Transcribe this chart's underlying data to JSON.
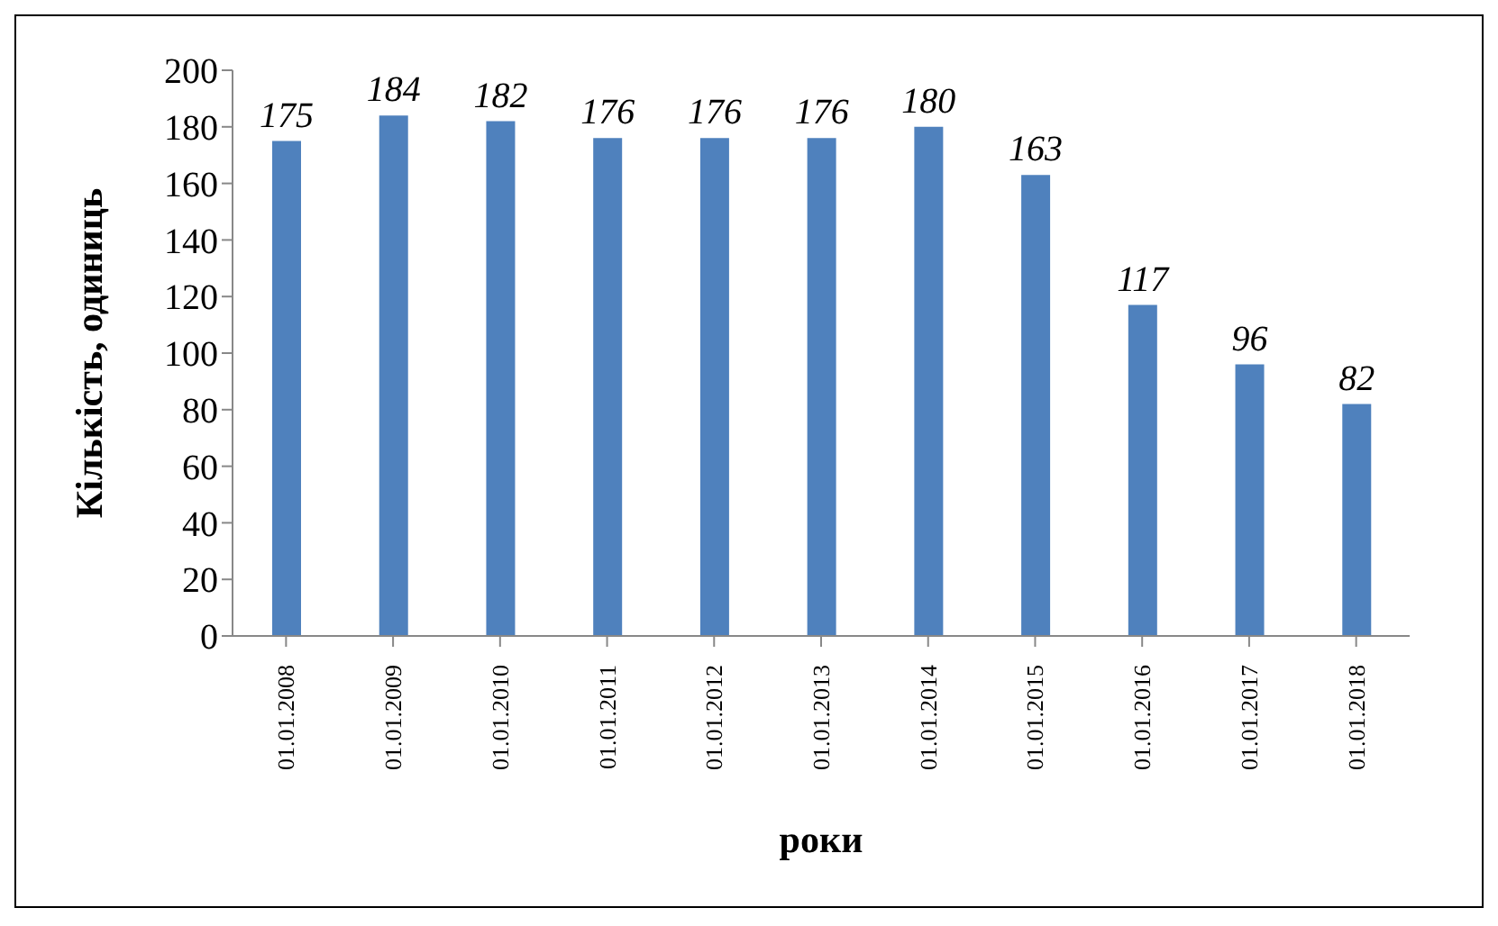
{
  "chart_data": {
    "type": "bar",
    "xlabel": "роки",
    "ylabel": "Кількість, одиниць",
    "categories": [
      "01.01.2008",
      "01.01.2009",
      "01.01.2010",
      "01.01.2011",
      "01.01.2012",
      "01.01.2013",
      "01.01.2014",
      "01.01.2015",
      "01.01.2016",
      "01.01.2017",
      "01.01.2018"
    ],
    "values": [
      175,
      184,
      182,
      176,
      176,
      176,
      180,
      163,
      117,
      96,
      82
    ],
    "color": "#4f81bd",
    "ylim": [
      0,
      200
    ],
    "yticks": [
      0,
      20,
      40,
      60,
      80,
      100,
      120,
      140,
      160,
      180,
      200
    ],
    "grid": false,
    "data_labels": true
  }
}
